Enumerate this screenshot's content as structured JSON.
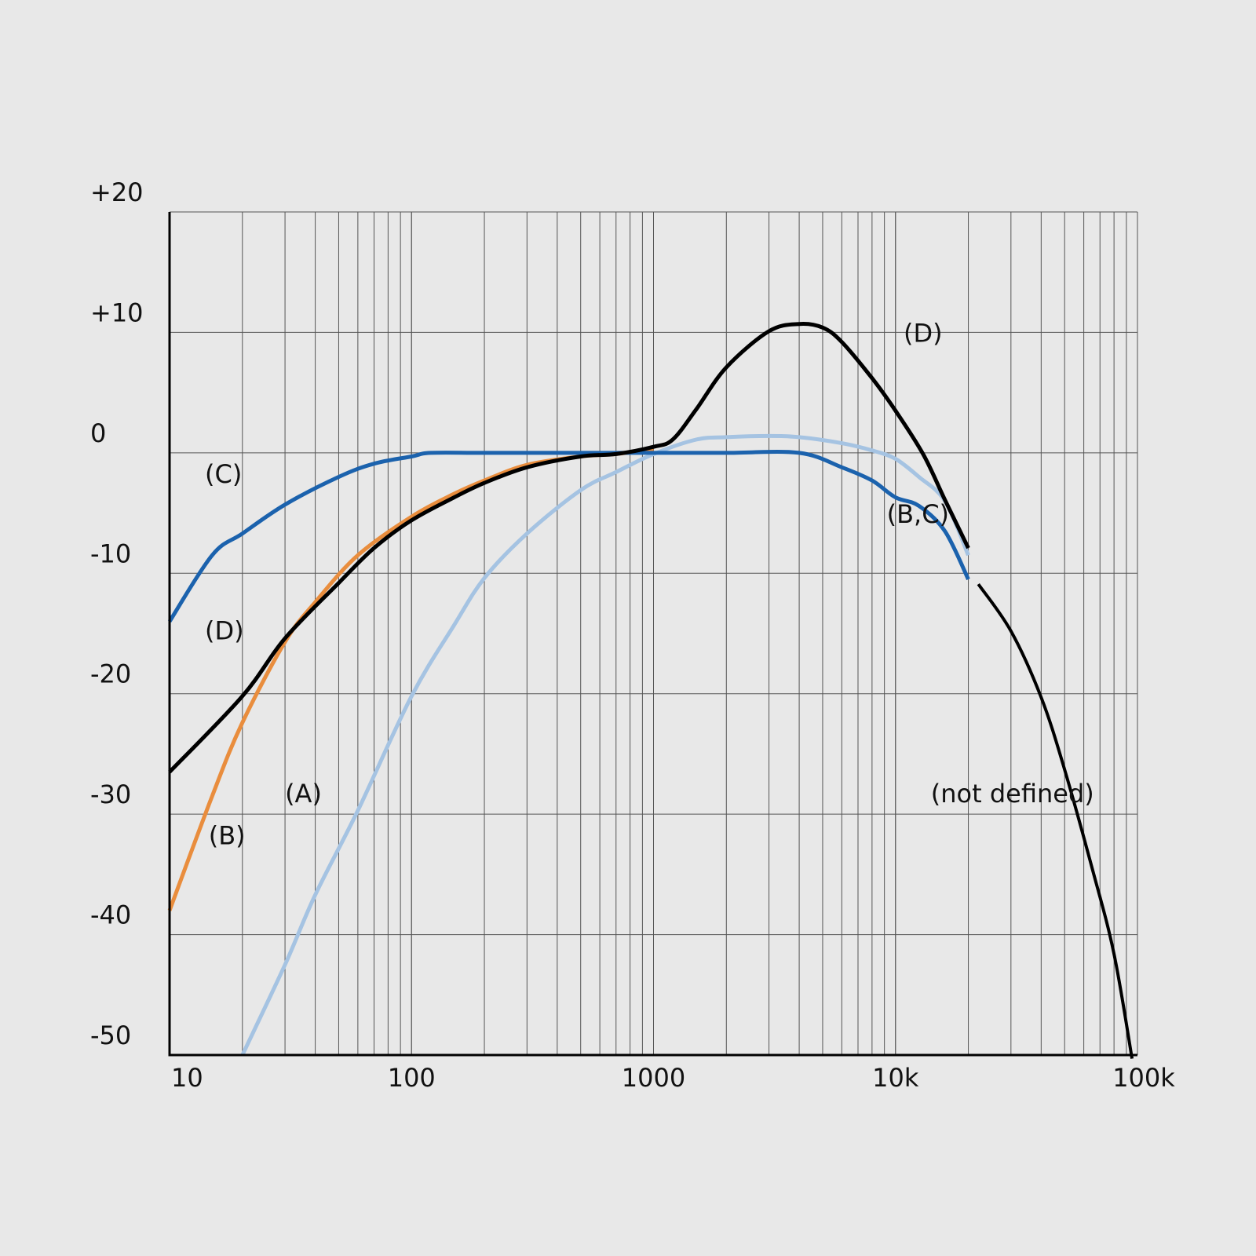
{
  "chart_data": {
    "type": "line",
    "title": "",
    "xlabel": "",
    "ylabel": "",
    "x_scale": "log",
    "xlim": [
      10,
      100000
    ],
    "ylim": [
      -50,
      20
    ],
    "grid": true,
    "legend": "none",
    "x_ticks": [
      {
        "value": 10,
        "label": "10"
      },
      {
        "value": 100,
        "label": "100"
      },
      {
        "value": 1000,
        "label": "1000"
      },
      {
        "value": 10000,
        "label": "10k"
      },
      {
        "value": 100000,
        "label": "100k"
      }
    ],
    "y_ticks": [
      {
        "value": 20,
        "label": "+20"
      },
      {
        "value": 10,
        "label": "+10"
      },
      {
        "value": 0,
        "label": "0"
      },
      {
        "value": -10,
        "label": "-10"
      },
      {
        "value": -20,
        "label": "-20"
      },
      {
        "value": -30,
        "label": "-30"
      },
      {
        "value": -40,
        "label": "-40"
      },
      {
        "value": -50,
        "label": "-50"
      }
    ],
    "series": [
      {
        "id": "A",
        "color": "#a5c3e2",
        "width": 5,
        "x": [
          20,
          30,
          40,
          60,
          100,
          150,
          200,
          300,
          500,
          700,
          1000,
          1500,
          2000,
          3000,
          4000,
          6000,
          8000,
          10000,
          12500,
          16000,
          20000
        ],
        "y": [
          -50,
          -42.5,
          -36.7,
          -29.7,
          -20.2,
          -14.3,
          -10.4,
          -6.7,
          -3.1,
          -1.6,
          -0.1,
          1.1,
          1.3,
          1.4,
          1.3,
          0.8,
          0.2,
          -0.5,
          -2.0,
          -4.0,
          -8.5
        ]
      },
      {
        "id": "B",
        "color": "#e98d3d",
        "width": 5,
        "x": [
          10,
          15,
          20,
          30,
          40,
          60,
          100,
          150,
          200,
          300,
          500,
          700,
          1000
        ],
        "y": [
          -38.0,
          -28.5,
          -22.4,
          -15.7,
          -12.4,
          -8.5,
          -5.3,
          -3.4,
          -2.3,
          -1.0,
          -0.3,
          -0.1,
          0.3
        ]
      },
      {
        "id": "C",
        "color": "#1b62ad",
        "width": 5,
        "x": [
          10,
          15,
          20,
          30,
          50,
          70,
          100,
          120,
          200,
          500,
          1000,
          2000,
          4000,
          6000,
          8000,
          10000,
          12500,
          16000,
          20000
        ],
        "y": [
          -14.0,
          -8.5,
          -6.7,
          -4.3,
          -2.0,
          -0.9,
          -0.3,
          0,
          0,
          0,
          0,
          0,
          0,
          -1.2,
          -2.3,
          -3.7,
          -4.4,
          -6.5,
          -10.5
        ]
      },
      {
        "id": "D",
        "color": "#000000",
        "width": 5,
        "x": [
          10,
          20,
          30,
          50,
          70,
          100,
          150,
          200,
          300,
          500,
          700,
          1000,
          1200,
          1500,
          2000,
          3000,
          4000,
          5000,
          6000,
          8000,
          10000,
          13000,
          16000,
          20000
        ],
        "y": [
          -26.5,
          -20.2,
          -15.4,
          -10.8,
          -7.9,
          -5.6,
          -3.7,
          -2.5,
          -1.2,
          -0.3,
          -0.1,
          0.5,
          1.1,
          3.6,
          7.1,
          10.1,
          10.7,
          10.4,
          9.2,
          6.2,
          3.5,
          -0.1,
          -3.9,
          -7.9
        ]
      },
      {
        "id": "D-ext",
        "color": "#000000",
        "width": 4,
        "x": [
          22000,
          30000,
          40000,
          50000,
          65000,
          80000,
          95000
        ],
        "y": [
          -10.9,
          -14.8,
          -20.3,
          -26.3,
          -34.5,
          -41.6,
          -50.3
        ]
      }
    ],
    "annotations": [
      {
        "text": "(C)",
        "x": 14,
        "y": -2.5
      },
      {
        "text": "(D)",
        "x": 14,
        "y": -15.5
      },
      {
        "text": "(B)",
        "x": 14.5,
        "y": -32.5
      },
      {
        "text": "(A)",
        "x": 30,
        "y": -29
      },
      {
        "text": "(D)",
        "x": 10800,
        "y": 9.2
      },
      {
        "text": "(B,C)",
        "x": 9200,
        "y": -5.8
      },
      {
        "text": "(not defined)",
        "x": 14000,
        "y": -29
      }
    ]
  }
}
